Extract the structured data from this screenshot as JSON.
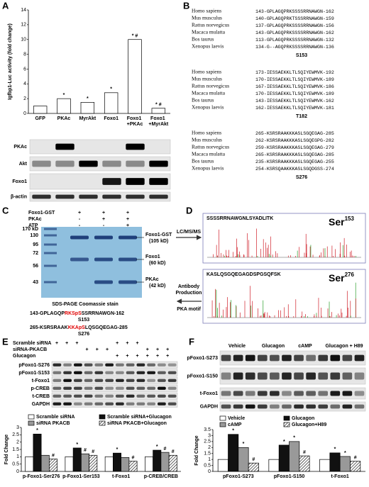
{
  "chart_data": [
    {
      "type": "bar",
      "ylabel": "Igfbp1-Luc activity (fold change)",
      "categories": [
        "GFP",
        "PKAc",
        "MyrAkt",
        "Foxo1",
        "Foxo1 +PKAc",
        "Foxo1 +MyrAkt"
      ],
      "values": [
        1,
        2,
        1.5,
        2.8,
        10,
        0.7
      ],
      "markers": [
        null,
        "*",
        "*",
        "*",
        "* #",
        "* #"
      ],
      "color": "#ffffff",
      "ylim": [
        0,
        14
      ],
      "yticks": [
        0,
        2,
        4,
        6,
        8,
        10,
        12,
        14
      ]
    },
    {
      "type": "bar",
      "ylabel": "Fold Change",
      "legend": "top",
      "categories": [
        "p-Foxo1-Ser276",
        "p-Foxo1-Ser153",
        "t-Foxo1",
        "p-CREB/CREB"
      ],
      "series": [
        {
          "name": "Scramble siRNA",
          "color": "#ffffff",
          "values": [
            1,
            1,
            1,
            1
          ],
          "markers": [
            null,
            null,
            null,
            null
          ]
        },
        {
          "name": "Scramble siRNA+Glucagon",
          "color": "#111111",
          "values": [
            2.55,
            1.6,
            1.25,
            1.45
          ],
          "markers": [
            "*",
            "*",
            "*",
            "*"
          ]
        },
        {
          "name": "siRNA PKACB",
          "color": "#999999",
          "values": [
            1.1,
            1.2,
            0.95,
            1.3
          ],
          "markers": [
            null,
            "#",
            null,
            "#"
          ]
        },
        {
          "name": "siRNA PKACB+Glucagon",
          "color": "#ffffff",
          "pattern": "hatch",
          "values": [
            0.85,
            1.1,
            0.7,
            1.1
          ],
          "markers": [
            "#",
            "#",
            "#",
            "#"
          ]
        }
      ],
      "ylim": [
        0,
        3
      ],
      "yticks": [
        0,
        0.5,
        1,
        1.5,
        2,
        2.5,
        3
      ]
    },
    {
      "type": "bar",
      "ylabel": "Fold Change",
      "legend": "top",
      "categories": [
        "pFoxo1-S273",
        "pFoxo1-S150",
        "t-Foxo1"
      ],
      "series": [
        {
          "name": "Vehicle",
          "color": "#ffffff",
          "values": [
            1,
            1,
            1
          ],
          "markers": [
            null,
            null,
            null
          ]
        },
        {
          "name": "Glucagon",
          "color": "#111111",
          "values": [
            3.1,
            2.2,
            1.55
          ],
          "markers": [
            "*",
            "*",
            "*"
          ]
        },
        {
          "name": "cAMP",
          "color": "#999999",
          "values": [
            2.0,
            2.5,
            1.25
          ],
          "markers": [
            "*",
            "*",
            "*"
          ]
        },
        {
          "name": "Glucagon+H89",
          "color": "#ffffff",
          "pattern": "hatch",
          "values": [
            0.7,
            1.3,
            0.85
          ],
          "markers": [
            "#",
            "#",
            "#"
          ]
        }
      ],
      "ylim": [
        0,
        3.5
      ],
      "yticks": [
        0,
        0.5,
        1,
        1.5,
        2,
        2.5,
        3,
        3.5
      ]
    }
  ],
  "panels": {
    "a": {
      "label": "A",
      "blots": [
        "PKAc",
        "Akt",
        "Foxo1",
        "β-actin"
      ]
    },
    "b": {
      "label": "B",
      "blocks": [
        {
          "rows": [
            {
              "species": "Homo sapiens",
              "sequence": "143-GPLAGQPRKSSSSRRNAWGN-162"
            },
            {
              "species": "Mus musculus",
              "sequence": "140-GPLAGQPRKTSSSRRNAWGN-159"
            },
            {
              "species": "Rattus norvegicus",
              "sequence": "137-GPLAGQPRKSSSSRRNAWGN-156"
            },
            {
              "species": "Macaca mulatta",
              "sequence": "143-GPLAGQPRKSSSSRRNAWGN-162"
            },
            {
              "species": "Bos taurus",
              "sequence": "113-GPLAGQPRKSSSSRRNAWGN-132"
            },
            {
              "species": "Xenopus laevis",
              "sequence": "134-G--AGQPRKSSSSRRNAWGN-136"
            }
          ],
          "site": "S153"
        },
        {
          "rows": [
            {
              "species": "Homo sapiens",
              "sequence": "173-IESSAEKKLTLSQIYEWMVK-192"
            },
            {
              "species": "Mus musculus",
              "sequence": "170-IESSAEKKLTLSQIYEWMVK-189"
            },
            {
              "species": "Rattus norvegicus",
              "sequence": "167-IESSAEKKLTLSQIYEWMVK-186"
            },
            {
              "species": "Macaca mulatta",
              "sequence": "170-IESSAEKKLTLSQIYEWMVK-189"
            },
            {
              "species": "Bos taurus",
              "sequence": "143-IESSAEKKLTLSQIYEWMVK-162"
            },
            {
              "species": "Xenopus laevis",
              "sequence": "162-IESSAEKKLTLSQIYEWMVK-181"
            }
          ],
          "site": "T182"
        },
        {
          "rows": [
            {
              "species": "Homo sapiens",
              "sequence": "265-KSRSRAAKKKASLSGQEGAG-285"
            },
            {
              "species": "Mus musculus",
              "sequence": "262-KSRSRAAKKKASLSGQEGPG-282"
            },
            {
              "species": "Rattus norvegicus",
              "sequence": "259-KSRSRAAKKKASLSGQEGAG-279"
            },
            {
              "species": "Macaca mulatta",
              "sequence": "265-KSRSRAAKKKASLSGQEGAG-285"
            },
            {
              "species": "Bos taurus",
              "sequence": "235-KSRSRAAKKKASLSGQEGAG-255"
            },
            {
              "species": "Xenopus laevis",
              "sequence": "254-KSRSQAAKKKASLSGQDGSS-274"
            }
          ],
          "site": "S276"
        }
      ]
    },
    "c": {
      "label": "C",
      "treatments": [
        {
          "name": "Foxo1-GST",
          "lanes": [
            "+",
            "+",
            "+"
          ]
        },
        {
          "name": "PKAc",
          "lanes": [
            "-",
            "+",
            "+"
          ]
        },
        {
          "name": "ATP",
          "lanes": [
            "-",
            "-",
            "+"
          ]
        }
      ],
      "markers": [
        "170 kD",
        "130",
        "95",
        "72",
        "56",
        "43"
      ],
      "bands": [
        {
          "name": "Foxo1-GST",
          "size": "(105 kD)"
        },
        {
          "name": "Foxo1",
          "size": "(60 kD)"
        },
        {
          "name": "PKAc",
          "size": "(42 kD)"
        }
      ],
      "caption": "SDS-PAGE Coomassie stain",
      "sequences": [
        {
          "parts": [
            "143-GPLAGQP",
            "RKSpS",
            "SSRRNAWGN-162"
          ],
          "site": "S153"
        },
        {
          "parts": [
            "265-KSRSRAAK",
            "KKApS",
            "LQSGQEGAG-285"
          ],
          "site": "S276"
        }
      ],
      "arrow_right": "LC/MS/MS",
      "arrow_left": [
        "Antibody",
        "Production",
        "PKA motif"
      ]
    },
    "d": {
      "label": "D",
      "spectra": [
        {
          "peptide": "SSSSRRNAWGNLSYADLITK",
          "site": {
            "text": "Ser",
            "sup": "153"
          }
        },
        {
          "peptide": "KASLQSGQEGAGDSPGSQFSK",
          "site": {
            "text": "Ser",
            "sup": "276"
          }
        }
      ]
    },
    "e": {
      "label": "E",
      "treatments": [
        {
          "name": "Scramble siRNA",
          "lanes": [
            "+",
            "+",
            "+",
            null,
            null,
            null,
            "+",
            "+",
            "+",
            null,
            null,
            null
          ]
        },
        {
          "name": "siRNA-PKACB",
          "lanes": [
            null,
            null,
            null,
            "+",
            "+",
            "+",
            null,
            null,
            null,
            "+",
            "+",
            "+"
          ]
        },
        {
          "name": "Glucagon",
          "lanes": [
            null,
            null,
            null,
            null,
            null,
            null,
            "+",
            "+",
            "+",
            "+",
            "+",
            "+"
          ]
        }
      ],
      "blots": [
        "pFoxo1-S276",
        "pFoxo1-S153",
        "t-Foxo1",
        "p-CREB",
        "t-CREB",
        "GAPDH"
      ]
    },
    "f": {
      "label": "F",
      "lanes": [
        "Vehicle",
        "Glucagon",
        "cAMP",
        "Glucagon + H89"
      ],
      "blots": [
        "pFoxo1-S273",
        "pFoxo1-S150",
        "t-Foxo1",
        "GAPDH"
      ]
    }
  }
}
